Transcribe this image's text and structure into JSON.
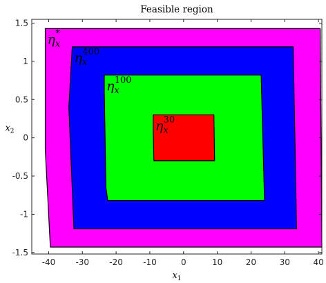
{
  "chart_data": {
    "type": "area",
    "title": "Feasible region",
    "xlabel": "x1",
    "ylabel": "x2",
    "xlim": [
      -45,
      41
    ],
    "ylim": [
      -1.52,
      1.55
    ],
    "xticks": [
      -40,
      -30,
      -20,
      -10,
      0,
      10,
      20,
      30,
      40
    ],
    "xtick_labels": [
      "-40",
      "-30",
      "-20",
      "-10",
      "0",
      "10",
      "20",
      "30",
      "40"
    ],
    "yticks": [
      -1.5,
      -1,
      -0.5,
      0,
      0.5,
      1,
      1.5
    ],
    "ytick_labels": [
      "-1.5",
      "-1",
      "-0.5",
      "0",
      "0.5",
      "1",
      "1.5"
    ],
    "grid": false,
    "series": [
      {
        "name": "η_x^*",
        "label_base": "η",
        "label_sub": "x",
        "label_sup": "*",
        "color": "#ff00ff",
        "polygon": [
          [
            -41,
            1.43
          ],
          [
            40.5,
            1.43
          ],
          [
            41,
            -1.43
          ],
          [
            -39.5,
            -1.43
          ],
          [
            -41,
            -0.15
          ]
        ]
      },
      {
        "name": "η_x^400",
        "label_base": "η",
        "label_sub": "x",
        "label_sup": "400",
        "color": "#0000ff",
        "polygon": [
          [
            -33,
            1.19
          ],
          [
            32.5,
            1.19
          ],
          [
            33.5,
            -1.19
          ],
          [
            -32.5,
            -1.19
          ],
          [
            -34,
            0.4
          ]
        ]
      },
      {
        "name": "η_x^100",
        "label_base": "η",
        "label_sub": "x",
        "label_sup": "100",
        "color": "#00ff00",
        "polygon": [
          [
            -23.5,
            0.82
          ],
          [
            23,
            0.82
          ],
          [
            24,
            -0.82
          ],
          [
            -22.5,
            -0.82
          ],
          [
            -23,
            -0.65
          ],
          [
            -23.5,
            0.6
          ]
        ]
      },
      {
        "name": "η_x^30",
        "label_base": "η",
        "label_sub": "x",
        "label_sup": "30",
        "color": "#ff0000",
        "polygon": [
          [
            -9,
            0.3
          ],
          [
            9,
            0.3
          ],
          [
            9.2,
            -0.3
          ],
          [
            -8.8,
            -0.3
          ],
          [
            -9,
            0.1
          ]
        ]
      }
    ]
  }
}
